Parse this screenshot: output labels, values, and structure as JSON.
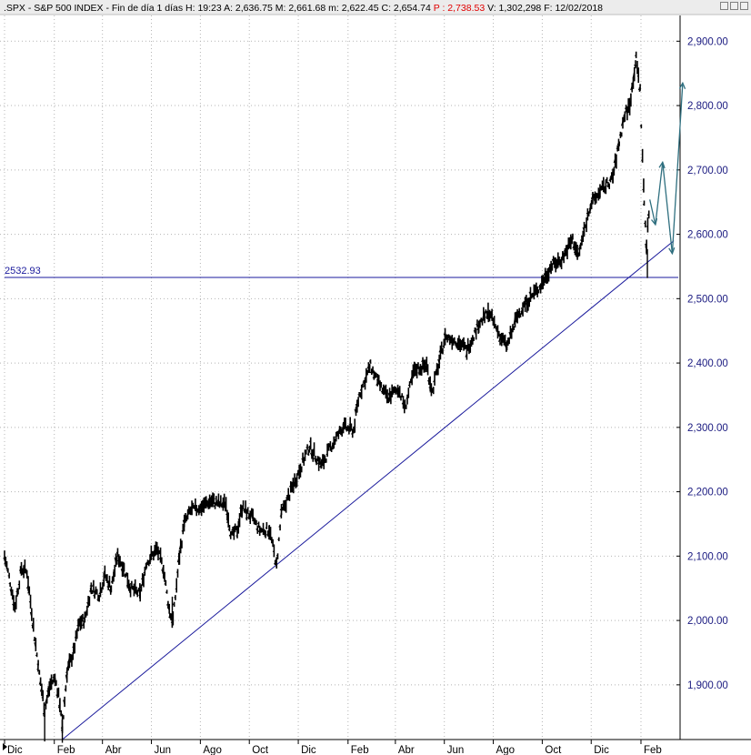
{
  "header": {
    "symbol": ".SPX",
    "name": "S&P 500 INDEX",
    "period": "Fin de día 1 días",
    "h_label": "H:",
    "h_value": "19:23",
    "a_label": "A:",
    "a_value": "2,636.75",
    "m_label": "M:",
    "m_value": "2,661.68",
    "min_label": "m:",
    "min_value": "2,622.45",
    "c_label": "C:",
    "c_value": "2,654.74",
    "p_label": "P :",
    "p_value": "2,738.53",
    "v_label": "V:",
    "v_value": "1,302,298",
    "f_label": "F:",
    "f_value": "12/02/2018",
    "colors": {
      "p_value": "#e00000",
      "text": "#000000"
    }
  },
  "window_buttons": [
    "minimize-icon",
    "restore-icon",
    "close-icon"
  ],
  "chart_data": {
    "type": "line",
    "style": "ohlc-bars",
    "ylim": [
      1815,
      2940
    ],
    "yticks": [
      {
        "value": 1900,
        "label": "1,900.00"
      },
      {
        "value": 2000,
        "label": "2,000.00"
      },
      {
        "value": 2100,
        "label": "2,100.00"
      },
      {
        "value": 2200,
        "label": "2,200.00"
      },
      {
        "value": 2300,
        "label": "2,300.00"
      },
      {
        "value": 2400,
        "label": "2,400.00"
      },
      {
        "value": 2500,
        "label": "2,500.00"
      },
      {
        "value": 2600,
        "label": "2,600.00"
      },
      {
        "value": 2700,
        "label": "2,700.00"
      },
      {
        "value": 2800,
        "label": "2,800.00"
      },
      {
        "value": 2900,
        "label": "2,900.00"
      }
    ],
    "xlim": [
      "2015-12-01",
      "2018-04-10"
    ],
    "xticks": [
      {
        "date": "2015-12-01",
        "label": "Dic"
      },
      {
        "date": "2016-02-01",
        "label": "Feb"
      },
      {
        "date": "2016-04-01",
        "label": "Abr"
      },
      {
        "date": "2016-06-01",
        "label": "Jun"
      },
      {
        "date": "2016-08-01",
        "label": "Ago"
      },
      {
        "date": "2016-10-01",
        "label": "Oct"
      },
      {
        "date": "2016-12-01",
        "label": "Dic"
      },
      {
        "date": "2017-02-01",
        "label": "Feb"
      },
      {
        "date": "2017-04-01",
        "label": "Abr"
      },
      {
        "date": "2017-06-01",
        "label": "Jun"
      },
      {
        "date": "2017-08-01",
        "label": "Ago"
      },
      {
        "date": "2017-10-01",
        "label": "Oct"
      },
      {
        "date": "2017-12-01",
        "label": "Dic"
      },
      {
        "date": "2018-02-01",
        "label": "Feb"
      }
    ],
    "grid": true,
    "series": [
      {
        "values": [
          [
            "2015-12-01",
            2100
          ],
          [
            "2015-12-08",
            2060
          ],
          [
            "2015-12-14",
            2020
          ],
          [
            "2015-12-18",
            2050
          ],
          [
            "2015-12-22",
            2080
          ],
          [
            "2015-12-29",
            2075
          ],
          [
            "2016-01-06",
            1990
          ],
          [
            "2016-01-12",
            1930
          ],
          [
            "2016-01-20",
            1860
          ],
          [
            "2016-01-27",
            1900
          ],
          [
            "2016-02-02",
            1910
          ],
          [
            "2016-02-08",
            1870
          ],
          [
            "2016-02-11",
            1830
          ],
          [
            "2016-02-17",
            1920
          ],
          [
            "2016-02-25",
            1950
          ],
          [
            "2016-03-03",
            1995
          ],
          [
            "2016-03-10",
            2000
          ],
          [
            "2016-03-18",
            2050
          ],
          [
            "2016-03-28",
            2040
          ],
          [
            "2016-04-04",
            2070
          ],
          [
            "2016-04-12",
            2050
          ],
          [
            "2016-04-20",
            2100
          ],
          [
            "2016-04-28",
            2080
          ],
          [
            "2016-05-06",
            2050
          ],
          [
            "2016-05-18",
            2040
          ],
          [
            "2016-05-26",
            2090
          ],
          [
            "2016-06-08",
            2110
          ],
          [
            "2016-06-16",
            2080
          ],
          [
            "2016-06-24",
            2010
          ],
          [
            "2016-06-28",
            2000
          ],
          [
            "2016-07-06",
            2100
          ],
          [
            "2016-07-12",
            2150
          ],
          [
            "2016-07-20",
            2170
          ],
          [
            "2016-08-01",
            2175
          ],
          [
            "2016-08-15",
            2185
          ],
          [
            "2016-08-25",
            2180
          ],
          [
            "2016-09-02",
            2180
          ],
          [
            "2016-09-09",
            2130
          ],
          [
            "2016-09-16",
            2140
          ],
          [
            "2016-09-22",
            2175
          ],
          [
            "2016-10-04",
            2160
          ],
          [
            "2016-10-14",
            2140
          ],
          [
            "2016-10-26",
            2140
          ],
          [
            "2016-11-04",
            2085
          ],
          [
            "2016-11-10",
            2165
          ],
          [
            "2016-11-25",
            2210
          ],
          [
            "2016-12-08",
            2250
          ],
          [
            "2016-12-15",
            2270
          ],
          [
            "2016-12-30",
            2240
          ],
          [
            "2017-01-10",
            2268
          ],
          [
            "2017-01-26",
            2300
          ],
          [
            "2017-02-08",
            2295
          ],
          [
            "2017-02-15",
            2350
          ],
          [
            "2017-03-01",
            2395
          ],
          [
            "2017-03-10",
            2370
          ],
          [
            "2017-03-22",
            2345
          ],
          [
            "2017-04-05",
            2360
          ],
          [
            "2017-04-13",
            2330
          ],
          [
            "2017-04-25",
            2390
          ],
          [
            "2017-05-10",
            2395
          ],
          [
            "2017-05-17",
            2355
          ],
          [
            "2017-06-02",
            2440
          ],
          [
            "2017-06-15",
            2435
          ],
          [
            "2017-06-29",
            2420
          ],
          [
            "2017-07-14",
            2460
          ],
          [
            "2017-07-26",
            2478
          ],
          [
            "2017-08-10",
            2440
          ],
          [
            "2017-08-18",
            2425
          ],
          [
            "2017-09-01",
            2475
          ],
          [
            "2017-09-12",
            2495
          ],
          [
            "2017-09-29",
            2519
          ],
          [
            "2017-10-12",
            2550
          ],
          [
            "2017-10-25",
            2560
          ],
          [
            "2017-11-08",
            2592
          ],
          [
            "2017-11-15",
            2565
          ],
          [
            "2017-11-30",
            2645
          ],
          [
            "2017-12-12",
            2665
          ],
          [
            "2017-12-28",
            2687
          ],
          [
            "2018-01-05",
            2743
          ],
          [
            "2018-01-12",
            2786
          ],
          [
            "2018-01-18",
            2800
          ],
          [
            "2018-01-26",
            2872
          ],
          [
            "2018-01-31",
            2823
          ],
          [
            "2018-02-05",
            2648
          ],
          [
            "2018-02-08",
            2581
          ],
          [
            "2018-02-12",
            2654
          ]
        ]
      }
    ],
    "annotations": {
      "horizontal_line": {
        "value": 2532.93,
        "label": "2532.93"
      },
      "trendline": {
        "from": [
          "2016-02-11",
          1815
        ],
        "to": [
          "2018-03-14",
          2590
        ]
      },
      "projection": [
        [
          "2018-02-12",
          2654
        ],
        [
          "2018-02-19",
          2615
        ],
        [
          "2018-02-28",
          2712
        ],
        [
          "2018-03-12",
          2570
        ],
        [
          "2018-03-25",
          2835
        ]
      ]
    },
    "colors": {
      "price": "#000000",
      "support_line": "#1a1a9c",
      "projection": "#2f6f7f",
      "grid": "#b4b4b4",
      "axis_text": "#1a1a80"
    }
  }
}
